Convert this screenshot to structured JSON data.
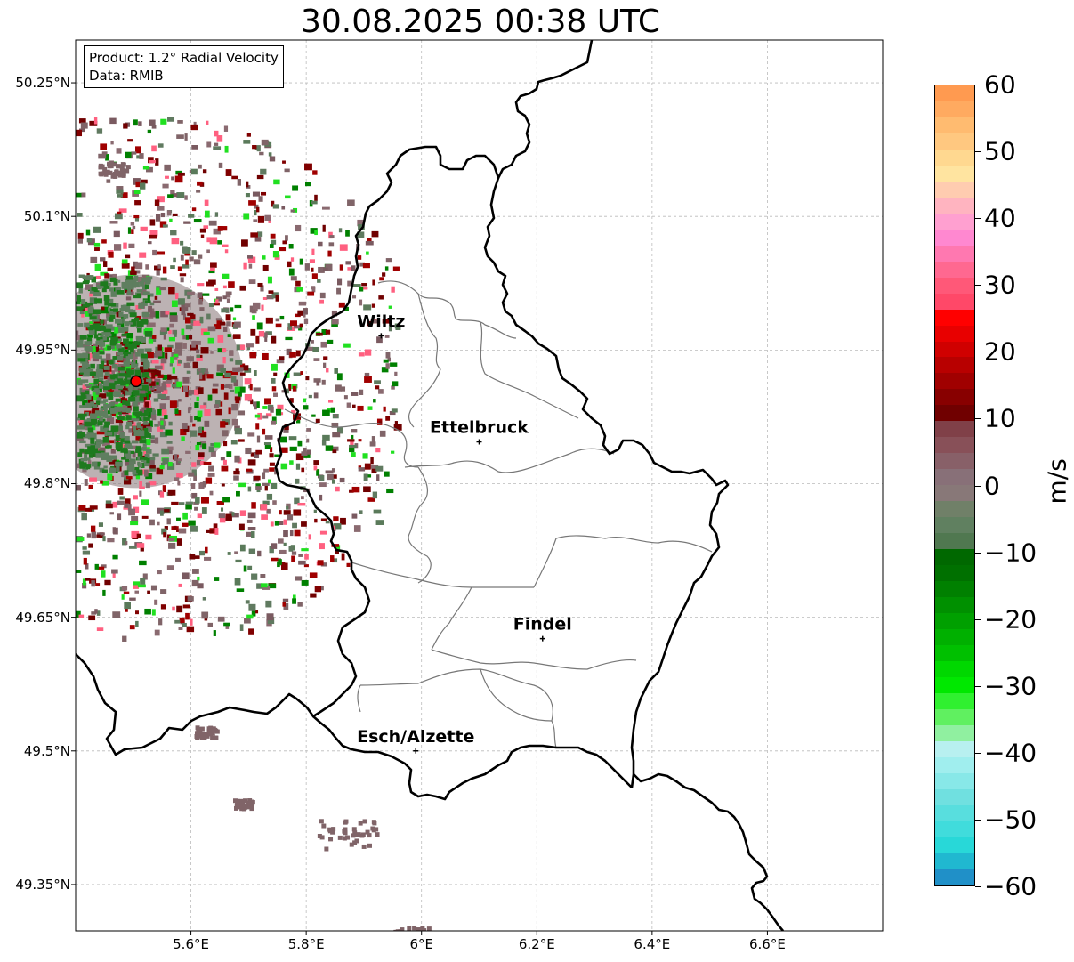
{
  "title": "30.08.2025 00:38 UTC",
  "info": {
    "product": "Product: 1.2° Radial Velocity",
    "data_source": "Data: RMIB"
  },
  "lat_ticks": [
    "50.25°N",
    "50.1°N",
    "49.95°N",
    "49.8°N",
    "49.65°N",
    "49.5°N",
    "49.35°N"
  ],
  "lon_ticks": [
    "5.6°E",
    "5.8°E",
    "6°E",
    "6.2°E",
    "6.4°E",
    "6.6°E"
  ],
  "cities": [
    {
      "name": "Wiltz",
      "lon": 5.93,
      "lat": 49.966
    },
    {
      "name": "Ettelbruck",
      "lon": 6.1,
      "lat": 49.847
    },
    {
      "name": "Findel",
      "lon": 6.21,
      "lat": 49.626
    },
    {
      "name": "Esch/Alzette",
      "lon": 5.99,
      "lat": 49.5
    }
  ],
  "radar_site": {
    "lon": 5.505,
    "lat": 49.915
  },
  "colorbar": {
    "unit": "m/s",
    "ticks": [
      "60",
      "50",
      "40",
      "30",
      "20",
      "10",
      "0",
      "−10",
      "−20",
      "−30",
      "−40",
      "−50",
      "−60"
    ],
    "min": -60,
    "max": 60,
    "colors": [
      "#ff9a50",
      "#ffaa60",
      "#ffbb70",
      "#ffc880",
      "#ffd890",
      "#ffe4a0",
      "#ffccb0",
      "#ffb4c0",
      "#ffa0d0",
      "#ff88d0",
      "#ff78b0",
      "#ff6890",
      "#ff5878",
      "#ff4868",
      "#ff0000",
      "#e80000",
      "#d00000",
      "#b80000",
      "#a00000",
      "#880000",
      "#700000",
      "#804048",
      "#885058",
      "#886068",
      "#887078",
      "#887878",
      "#708068",
      "#608060",
      "#507850",
      "#006800",
      "#007000",
      "#008000",
      "#009000",
      "#00a000",
      "#00b000",
      "#00c000",
      "#00d800",
      "#00e800",
      "#30f030",
      "#60f060",
      "#90f0a0",
      "#b8f0f0",
      "#a0eeee",
      "#88e8e8",
      "#70e0e0",
      "#58dede",
      "#40dcdc",
      "#28d8d8",
      "#20b8d0",
      "#2090c8"
    ]
  }
}
